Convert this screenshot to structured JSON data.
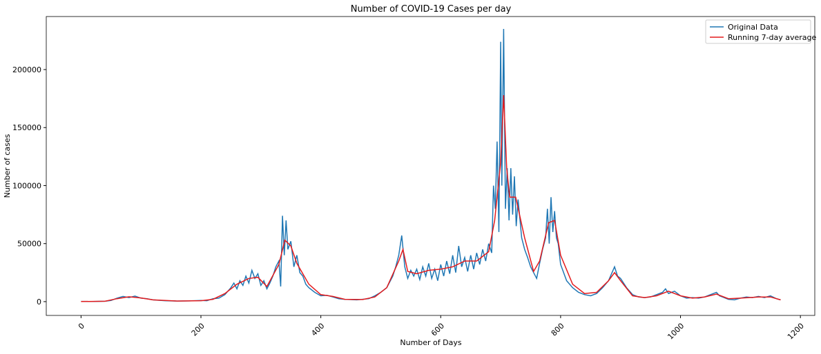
{
  "chart_data": {
    "type": "line",
    "title": "Number of COVID-19 Cases per day",
    "x_label": "Number of Days",
    "y_label": "Number of cases",
    "xlim": [
      -58,
      1224
    ],
    "ylim": [
      -11900,
      245700
    ],
    "xticks": [
      0,
      200,
      400,
      600,
      800,
      1000,
      1200
    ],
    "yticks": [
      0,
      50000,
      100000,
      150000,
      200000
    ],
    "legend": "upper right",
    "series": [
      {
        "name": "Original Data",
        "color": "#1f77b4",
        "x": [
          0,
          20,
          40,
          50,
          60,
          70,
          80,
          90,
          100,
          110,
          120,
          140,
          160,
          180,
          200,
          210,
          220,
          230,
          240,
          250,
          255,
          260,
          265,
          270,
          275,
          280,
          285,
          290,
          295,
          300,
          305,
          310,
          315,
          320,
          325,
          330,
          333,
          336,
          339,
          342,
          345,
          350,
          355,
          360,
          365,
          370,
          375,
          380,
          390,
          400,
          410,
          420,
          430,
          440,
          460,
          480,
          490,
          500,
          510,
          520,
          525,
          530,
          535,
          540,
          545,
          550,
          555,
          560,
          565,
          570,
          575,
          580,
          585,
          590,
          595,
          600,
          605,
          610,
          615,
          620,
          625,
          630,
          635,
          640,
          645,
          650,
          655,
          660,
          665,
          670,
          675,
          680,
          685,
          688,
          691,
          694,
          697,
          700,
          702,
          705,
          708,
          711,
          714,
          717,
          720,
          723,
          726,
          729,
          735,
          740,
          745,
          750,
          755,
          760,
          765,
          770,
          775,
          778,
          781,
          784,
          787,
          790,
          793,
          796,
          800,
          810,
          820,
          830,
          840,
          850,
          860,
          870,
          880,
          890,
          895,
          900,
          910,
          920,
          930,
          940,
          950,
          960,
          970,
          975,
          980,
          990,
          1000,
          1010,
          1020,
          1030,
          1040,
          1050,
          1060,
          1065,
          1070,
          1080,
          1090,
          1100,
          1110,
          1120,
          1130,
          1140,
          1150,
          1160,
          1167
        ],
        "values": [
          200,
          100,
          300,
          1000,
          3000,
          4500,
          3500,
          4800,
          3000,
          2500,
          1500,
          800,
          500,
          600,
          1000,
          800,
          2500,
          3000,
          6000,
          12000,
          16000,
          11000,
          18000,
          14000,
          22000,
          16000,
          27000,
          20000,
          24000,
          14000,
          18000,
          11000,
          16000,
          22000,
          30000,
          35000,
          13000,
          74000,
          40000,
          70000,
          45000,
          52000,
          30000,
          40000,
          25000,
          22000,
          15000,
          12000,
          8000,
          5000,
          5500,
          4000,
          2500,
          2000,
          1500,
          2500,
          5000,
          8000,
          12000,
          22000,
          30000,
          40000,
          57000,
          30000,
          20000,
          27000,
          22000,
          28000,
          19000,
          30000,
          22000,
          33000,
          20000,
          28000,
          18000,
          32000,
          22000,
          35000,
          24000,
          40000,
          25000,
          48000,
          30000,
          38000,
          26000,
          40000,
          28000,
          42000,
          32000,
          45000,
          35000,
          50000,
          42000,
          100000,
          80000,
          138000,
          60000,
          224000,
          100000,
          235000,
          80000,
          115000,
          70000,
          115000,
          75000,
          108000,
          65000,
          88000,
          55000,
          45000,
          38000,
          30000,
          25000,
          20000,
          33000,
          45000,
          55000,
          80000,
          50000,
          90000,
          60000,
          78000,
          55000,
          50000,
          32000,
          18000,
          12000,
          8000,
          6000,
          5000,
          7000,
          12000,
          18000,
          30000,
          22000,
          20000,
          12000,
          6000,
          4000,
          3500,
          4000,
          6000,
          8000,
          11000,
          7000,
          9000,
          5000,
          3000,
          3500,
          3000,
          4000,
          6000,
          8000,
          5000,
          4000,
          2000,
          1500,
          3000,
          4000,
          3500,
          4500,
          3500,
          5000,
          2500,
          1500
        ]
      },
      {
        "name": "Running 7-day average",
        "color": "#e41a1c",
        "x": [
          0,
          40,
          60,
          80,
          100,
          120,
          160,
          200,
          220,
          240,
          260,
          280,
          295,
          310,
          330,
          340,
          350,
          360,
          380,
          400,
          420,
          440,
          470,
          490,
          510,
          530,
          537,
          545,
          560,
          580,
          600,
          620,
          640,
          660,
          680,
          690,
          700,
          705,
          710,
          715,
          725,
          740,
          755,
          765,
          780,
          790,
          800,
          820,
          840,
          860,
          880,
          890,
          900,
          920,
          940,
          960,
          980,
          1000,
          1020,
          1040,
          1060,
          1080,
          1100,
          1130,
          1150,
          1167
        ],
        "values": [
          100,
          300,
          2500,
          4200,
          3200,
          1500,
          500,
          800,
          2000,
          7000,
          15000,
          20000,
          21000,
          13000,
          32000,
          53000,
          48000,
          33000,
          15000,
          6000,
          4500,
          2000,
          1800,
          4000,
          12000,
          35000,
          45000,
          26000,
          24000,
          27000,
          28000,
          30000,
          35000,
          35000,
          43000,
          70000,
          120000,
          178000,
          115000,
          90000,
          90000,
          55000,
          26000,
          35000,
          68000,
          70000,
          40000,
          15000,
          7000,
          8000,
          18000,
          25000,
          18000,
          5000,
          3500,
          5000,
          9000,
          5000,
          3000,
          4000,
          6500,
          2500,
          3000,
          4000,
          4000,
          1500
        ]
      }
    ]
  }
}
